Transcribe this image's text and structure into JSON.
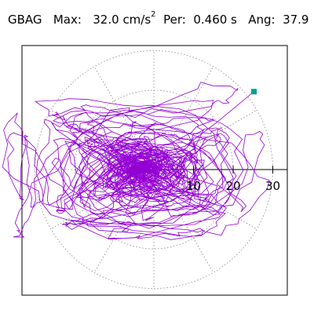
{
  "header": {
    "station": "GBAG",
    "max_label": "Max:",
    "max_value": "32.0",
    "max_unit": "cm/s",
    "max_unit_exp": "2",
    "per_label": "Per:",
    "per_value": "0.460 s",
    "ang_label": "Ang:",
    "ang_value": "37.9"
  },
  "chart_data": {
    "type": "polar-orbit",
    "title": "GBAG  Max: 32.0 cm/s2  Per: 0.460 s  Ang: 37.9",
    "units": "cm/s^2",
    "max_value": 32.0,
    "period_s": 0.46,
    "angle_deg": 37.9,
    "radial_ticks": [
      "10",
      "20",
      "30"
    ],
    "radial_tick_values": [
      10,
      20,
      30
    ],
    "grid": true,
    "grid_rings": [
      10,
      20,
      30
    ],
    "grid_spokes_deg": [
      0,
      30,
      60,
      90,
      120,
      150,
      180,
      210,
      240,
      270,
      300,
      330
    ],
    "peak_point": {
      "r": 32.0,
      "angle_deg": 37.9
    },
    "colors": {
      "orbit": "#9400d3",
      "peak_marker": "#00a090",
      "grid": "#888888",
      "axis": "#000000"
    }
  }
}
